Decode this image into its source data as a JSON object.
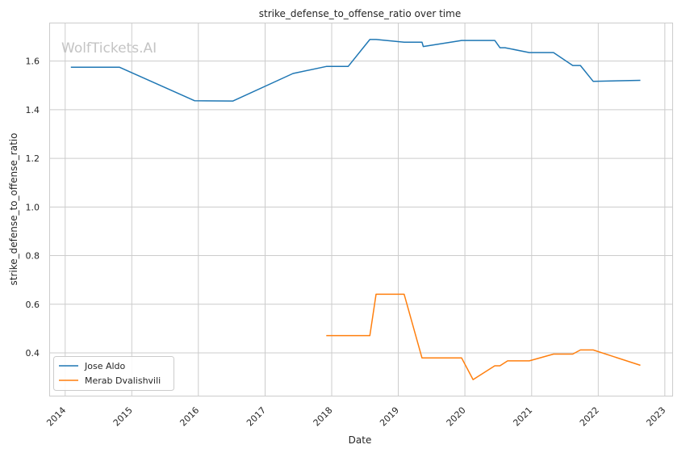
{
  "chart_data": {
    "type": "line",
    "title": "strike_defense_to_offense_ratio over time",
    "xlabel": "Date",
    "ylabel": "strike_defense_to_offense_ratio",
    "watermark": "WolfTickets.AI",
    "xlim": [
      "2013-10-10",
      "2023-02-15"
    ],
    "ylim": [
      0.224,
      1.755
    ],
    "x_ticks": [
      "2014",
      "2015",
      "2016",
      "2017",
      "2018",
      "2019",
      "2020",
      "2021",
      "2022",
      "2023"
    ],
    "y_ticks": [
      "0.4",
      "0.6",
      "0.8",
      "1.0",
      "1.2",
      "1.4",
      "1.6"
    ],
    "grid": true,
    "legend_position": "bottom-left",
    "series": [
      {
        "name": "Jose Aldo",
        "color": "#1f77b4",
        "points": [
          [
            "2014-02-01",
            1.575
          ],
          [
            "2014-10-25",
            1.575
          ],
          [
            "2015-12-12",
            1.437
          ],
          [
            "2016-07-09",
            1.436
          ],
          [
            "2017-06-03",
            1.549
          ],
          [
            "2017-12-02",
            1.578
          ],
          [
            "2018-04-01",
            1.578
          ],
          [
            "2018-07-29",
            1.689
          ],
          [
            "2018-09-01",
            1.689
          ],
          [
            "2019-02-02",
            1.678
          ],
          [
            "2019-05-11",
            1.678
          ],
          [
            "2019-05-18",
            1.66
          ],
          [
            "2019-12-14",
            1.685
          ],
          [
            "2020-06-13",
            1.685
          ],
          [
            "2020-07-11",
            1.655
          ],
          [
            "2020-08-08",
            1.655
          ],
          [
            "2020-12-19",
            1.635
          ],
          [
            "2021-05-01",
            1.635
          ],
          [
            "2021-08-14",
            1.582
          ],
          [
            "2021-09-25",
            1.582
          ],
          [
            "2021-12-04",
            1.517
          ],
          [
            "2022-08-20",
            1.521
          ]
        ]
      },
      {
        "name": "Merab Dvalishvili",
        "color": "#ff7f0e",
        "points": [
          [
            "2017-12-02",
            0.471
          ],
          [
            "2018-07-29",
            0.471
          ],
          [
            "2018-09-01",
            0.641
          ],
          [
            "2019-02-02",
            0.641
          ],
          [
            "2019-05-11",
            0.379
          ],
          [
            "2019-12-14",
            0.379
          ],
          [
            "2020-02-15",
            0.29
          ],
          [
            "2020-06-13",
            0.347
          ],
          [
            "2020-07-11",
            0.347
          ],
          [
            "2020-08-22",
            0.367
          ],
          [
            "2020-12-19",
            0.367
          ],
          [
            "2021-05-01",
            0.395
          ],
          [
            "2021-08-14",
            0.395
          ],
          [
            "2021-09-25",
            0.412
          ],
          [
            "2021-12-04",
            0.412
          ],
          [
            "2022-08-20",
            0.349
          ]
        ]
      }
    ]
  }
}
